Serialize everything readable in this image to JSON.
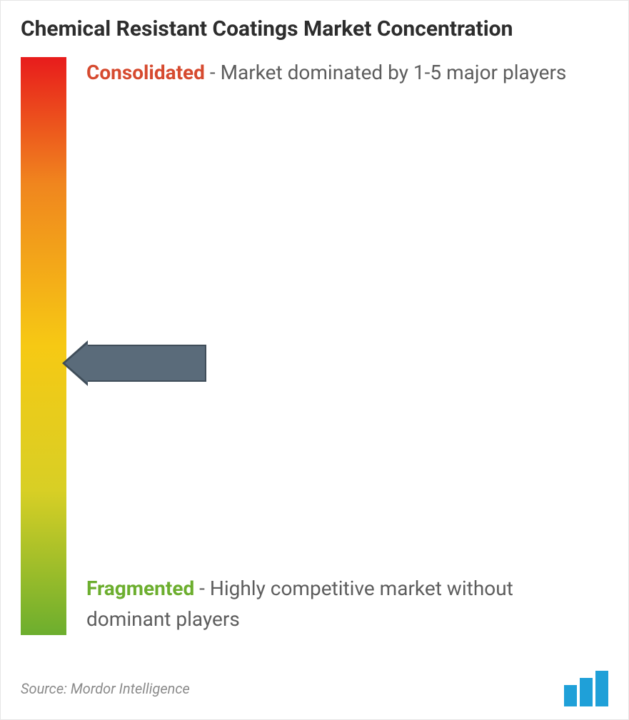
{
  "title_color": "#2d2d2d",
  "title": "Chemical Resistant Coatings Market Concentration",
  "gradient": {
    "colors": [
      "#e81c1c",
      "#f0861e",
      "#f6c914",
      "#d8cf25",
      "#6cae2e"
    ]
  },
  "consolidated": {
    "keyword": "Consolidated",
    "keyword_color": "#d64a2f",
    "rest": " - Market dominated by 1-5 major players"
  },
  "fragmented": {
    "keyword": "Fragmented",
    "keyword_color": "#6cae2e",
    "rest": " - Highly competitive market without dominant players"
  },
  "arrow": {
    "fill": "#5a6b7a",
    "border": "#3f4d59",
    "position_pct": 52
  },
  "source": "Source: Mordor Intelligence",
  "logo_color": "#1fa0d8",
  "text_color": "#5d5d5d",
  "font_sizes": {
    "title": 30,
    "label": 28,
    "footer": 20
  }
}
